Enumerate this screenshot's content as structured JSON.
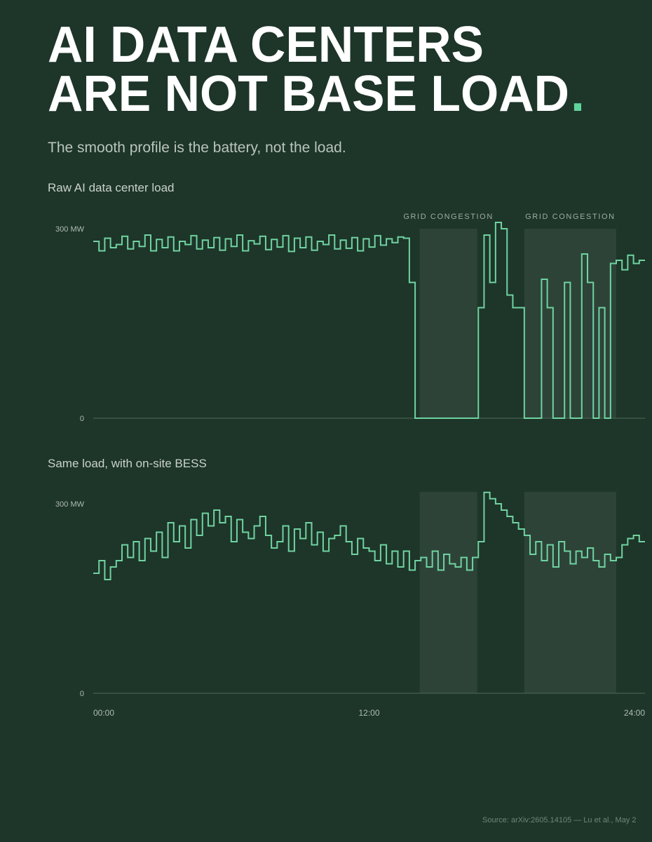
{
  "header": {
    "title_line1": "AI DATA CENTERS",
    "title_line2": "ARE NOT BASE LOAD",
    "title_period": ".",
    "subtitle": "The smooth profile is the battery, not the load."
  },
  "chart_data": [
    {
      "type": "line",
      "title": "Raw AI data center load",
      "x": [
        0,
        0.25,
        0.5,
        0.75,
        1,
        1.25,
        1.5,
        1.75,
        2,
        2.25,
        2.5,
        2.75,
        3,
        3.25,
        3.5,
        3.75,
        4,
        4.25,
        4.5,
        4.75,
        5,
        5.25,
        5.5,
        5.75,
        6,
        6.25,
        6.5,
        6.75,
        7,
        7.25,
        7.5,
        7.75,
        8,
        8.25,
        8.5,
        8.75,
        9,
        9.25,
        9.5,
        9.75,
        10,
        10.25,
        10.5,
        10.75,
        11,
        11.25,
        11.5,
        11.75,
        12,
        12.25,
        12.5,
        12.75,
        13,
        13.25,
        13.5,
        13.75,
        14,
        14.25,
        14.5,
        14.75,
        15,
        15.25,
        15.5,
        15.75,
        16,
        16.25,
        16.5,
        16.75,
        17,
        17.25,
        17.5,
        17.75,
        18,
        18.25,
        18.5,
        18.75,
        19,
        19.25,
        19.5,
        19.75,
        20,
        20.25,
        20.5,
        20.75,
        21,
        21.25,
        21.5,
        21.75,
        22,
        22.25,
        22.5,
        22.75,
        23,
        23.25,
        23.5,
        23.75
      ],
      "series": [
        {
          "color": "#6fd3a1",
          "values": [
            280,
            265,
            285,
            270,
            275,
            288,
            268,
            280,
            272,
            290,
            265,
            283,
            270,
            287,
            265,
            280,
            275,
            289,
            268,
            282,
            270,
            286,
            266,
            284,
            272,
            290,
            265,
            281,
            276,
            288,
            267,
            283,
            271,
            289,
            264,
            285,
            270,
            287,
            266,
            280,
            275,
            290,
            268,
            282,
            269,
            286,
            265,
            284,
            271,
            289,
            274,
            284,
            278,
            287,
            285,
            215,
            0,
            0,
            0,
            0,
            0,
            0,
            0,
            0,
            0,
            0,
            0,
            175,
            290,
            215,
            310,
            300,
            195,
            175,
            175,
            0,
            0,
            0,
            220,
            175,
            0,
            0,
            215,
            0,
            0,
            260,
            215,
            0,
            175,
            0,
            245,
            250,
            235,
            258,
            245,
            250
          ]
        }
      ],
      "xlim": [
        0,
        24
      ],
      "ylim": [
        0,
        320
      ],
      "yticks": [
        0,
        {
          "value": 300,
          "label": "300 MW"
        }
      ],
      "bands": [
        {
          "start": 14.2,
          "end": 16.7,
          "label": "GRID CONGESTION"
        },
        {
          "start": 18.75,
          "end": 22.75,
          "label": "GRID CONGESTION"
        }
      ]
    },
    {
      "type": "line",
      "title": "Same load, with on-site BESS",
      "x": [
        0,
        0.25,
        0.5,
        0.75,
        1,
        1.25,
        1.5,
        1.75,
        2,
        2.25,
        2.5,
        2.75,
        3,
        3.25,
        3.5,
        3.75,
        4,
        4.25,
        4.5,
        4.75,
        5,
        5.25,
        5.5,
        5.75,
        6,
        6.25,
        6.5,
        6.75,
        7,
        7.25,
        7.5,
        7.75,
        8,
        8.25,
        8.5,
        8.75,
        9,
        9.25,
        9.5,
        9.75,
        10,
        10.25,
        10.5,
        10.75,
        11,
        11.25,
        11.5,
        11.75,
        12,
        12.25,
        12.5,
        12.75,
        13,
        13.25,
        13.5,
        13.75,
        14,
        14.25,
        14.5,
        14.75,
        15,
        15.25,
        15.5,
        15.75,
        16,
        16.25,
        16.5,
        16.75,
        17,
        17.25,
        17.5,
        17.75,
        18,
        18.25,
        18.5,
        18.75,
        19,
        19.25,
        19.5,
        19.75,
        20,
        20.25,
        20.5,
        20.75,
        21,
        21.25,
        21.5,
        21.75,
        22,
        22.25,
        22.5,
        22.75,
        23,
        23.25,
        23.5,
        23.75
      ],
      "series": [
        {
          "color": "#6fd3a1",
          "values": [
            190,
            210,
            180,
            200,
            210,
            235,
            215,
            240,
            210,
            245,
            225,
            255,
            215,
            270,
            240,
            265,
            230,
            275,
            250,
            285,
            265,
            290,
            270,
            280,
            240,
            275,
            255,
            245,
            265,
            280,
            250,
            230,
            240,
            265,
            225,
            260,
            245,
            270,
            235,
            255,
            225,
            245,
            250,
            265,
            240,
            220,
            245,
            230,
            225,
            210,
            235,
            205,
            225,
            200,
            225,
            195,
            210,
            215,
            200,
            225,
            195,
            220,
            205,
            200,
            215,
            195,
            215,
            240,
            318,
            308,
            300,
            290,
            280,
            270,
            260,
            250,
            220,
            240,
            210,
            235,
            200,
            240,
            225,
            205,
            225,
            215,
            230,
            210,
            200,
            220,
            210,
            215,
            235,
            245,
            250,
            240
          ]
        }
      ],
      "xlim": [
        0,
        24
      ],
      "ylim": [
        0,
        320
      ],
      "yticks": [
        0,
        {
          "value": 300,
          "label": "300 MW"
        }
      ],
      "xticks": [
        {
          "value": 0,
          "label": "00:00"
        },
        {
          "value": 12,
          "label": "12:00"
        },
        {
          "value": 24,
          "label": "24:00"
        }
      ],
      "bands": [
        {
          "start": 14.2,
          "end": 16.7
        },
        {
          "start": 18.75,
          "end": 22.75
        }
      ]
    }
  ],
  "footer": {
    "source": "Source: arXiv:2605.14105 — Lu et al., May 2"
  }
}
